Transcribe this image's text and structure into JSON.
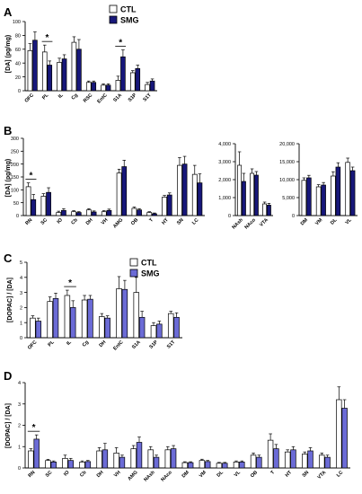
{
  "legend": {
    "ctl": "CTL",
    "smg": "SMG"
  },
  "colors": {
    "ctl": "#ffffff",
    "smg_dark": "#17177a",
    "smg_light": "#6b6bd6",
    "stroke": "#000000"
  },
  "chart_data": [
    {
      "panel": "A",
      "type": "bar",
      "ylabel": "[DA] (pg/mg)",
      "ylim": [
        0,
        100
      ],
      "yticks": [
        "0",
        "20",
        "40",
        "60",
        "80",
        "100"
      ],
      "categories": [
        "OFC",
        "PL",
        "IL",
        "Cg",
        "RSC",
        "EntC",
        "S1A",
        "S1P",
        "S1T"
      ],
      "series": [
        {
          "name": "CTL",
          "values": [
            58,
            56,
            41,
            70,
            12,
            8,
            15,
            26,
            9
          ],
          "errors": [
            10,
            10,
            6,
            8,
            2,
            2,
            6,
            3,
            3
          ]
        },
        {
          "name": "SMG",
          "values": [
            73,
            37,
            46,
            60,
            12,
            8,
            49,
            32,
            14
          ],
          "errors": [
            12,
            6,
            6,
            14,
            2,
            2,
            10,
            5,
            3
          ]
        }
      ],
      "significance": [
        {
          "category": "PL",
          "label": "*"
        },
        {
          "category": "S1A",
          "label": "*"
        }
      ]
    },
    {
      "panel": "B",
      "type": "bar",
      "ylabel": "[DA] (pg/mg)",
      "ylim": [
        0,
        300
      ],
      "yticks": [
        "0",
        "50",
        "100",
        "150",
        "200",
        "250",
        "300"
      ],
      "categories": [
        "RN",
        "SC",
        "IO",
        "Cb",
        "DH",
        "VH",
        "AMG",
        "OB",
        "T",
        "HT",
        "SN",
        "LC"
      ],
      "series": [
        {
          "name": "CTL",
          "values": [
            112,
            75,
            12,
            15,
            22,
            15,
            165,
            28,
            12,
            72,
            195,
            160
          ],
          "errors": [
            15,
            10,
            5,
            4,
            5,
            4,
            15,
            5,
            3,
            6,
            30,
            35
          ]
        },
        {
          "name": "SMG",
          "values": [
            62,
            90,
            20,
            12,
            14,
            20,
            190,
            22,
            7,
            80,
            200,
            127
          ],
          "errors": [
            20,
            18,
            7,
            3,
            4,
            5,
            25,
            5,
            3,
            8,
            30,
            35
          ]
        }
      ],
      "significance": [
        {
          "category": "RN",
          "label": "*"
        }
      ]
    },
    {
      "panel": "B",
      "type": "bar",
      "ylabel": "",
      "ylim": [
        0,
        4000
      ],
      "yticks": [
        "0",
        "1,000",
        "2,000",
        "3,000",
        "4,000"
      ],
      "categories": [
        "NAsh",
        "NAco",
        "VTA"
      ],
      "series": [
        {
          "name": "CTL",
          "values": [
            2800,
            2350,
            650
          ],
          "errors": [
            750,
            250,
            100
          ]
        },
        {
          "name": "SMG",
          "values": [
            1900,
            2250,
            580
          ],
          "errors": [
            450,
            200,
            100
          ]
        }
      ]
    },
    {
      "panel": "B",
      "type": "bar",
      "ylabel": "",
      "ylim": [
        0,
        20000
      ],
      "yticks": [
        "0",
        "5,000",
        "10,000",
        "15,000",
        "20,000"
      ],
      "categories": [
        "DM",
        "VM",
        "DL",
        "VL"
      ],
      "series": [
        {
          "name": "CTL",
          "values": [
            9800,
            8000,
            11000,
            14800
          ],
          "errors": [
            700,
            600,
            1200,
            1200
          ]
        },
        {
          "name": "SMG",
          "values": [
            10500,
            8500,
            13500,
            12500
          ],
          "errors": [
            700,
            700,
            1200,
            1000
          ]
        }
      ]
    },
    {
      "panel": "C",
      "type": "bar",
      "ylabel": "[DOPAC] / [DA]",
      "ylim": [
        0,
        5
      ],
      "yticks": [
        "0",
        "1",
        "2",
        "3",
        "4",
        "5"
      ],
      "categories": [
        "OFC",
        "PL",
        "IL",
        "Cg",
        "DH",
        "EntC",
        "S1A",
        "S1P",
        "S1T"
      ],
      "series": [
        {
          "name": "CTL",
          "values": [
            1.3,
            2.4,
            2.8,
            2.5,
            1.4,
            3.25,
            3.0,
            0.8,
            1.6
          ],
          "errors": [
            0.15,
            0.3,
            0.35,
            0.3,
            0.2,
            0.8,
            1.0,
            0.2,
            0.15
          ]
        },
        {
          "name": "SMG",
          "values": [
            1.1,
            2.6,
            2.0,
            2.55,
            1.3,
            3.2,
            1.35,
            0.9,
            1.35
          ],
          "errors": [
            0.2,
            0.35,
            0.45,
            0.25,
            0.15,
            0.6,
            0.4,
            0.2,
            0.3
          ]
        }
      ],
      "significance": [
        {
          "category": "IL",
          "label": "*"
        }
      ]
    },
    {
      "panel": "D",
      "type": "bar",
      "ylabel": "[DOPAC] / [DA]",
      "ylim": [
        0,
        4
      ],
      "yticks": [
        "0",
        "1",
        "2",
        "3",
        "4"
      ],
      "categories": [
        "RN",
        "SC",
        "IO",
        "Cb",
        "DH",
        "VH",
        "AMG",
        "NAsh",
        "NAco",
        "DM",
        "VM",
        "DL",
        "VL",
        "OB",
        "T",
        "HT",
        "SN",
        "VTA",
        "LC"
      ],
      "series": [
        {
          "name": "CTL",
          "values": [
            0.8,
            0.35,
            0.45,
            0.28,
            0.8,
            0.7,
            0.9,
            0.85,
            0.85,
            0.25,
            0.35,
            0.22,
            0.28,
            0.6,
            1.3,
            0.75,
            0.65,
            0.6,
            3.2
          ],
          "errors": [
            0.1,
            0.05,
            0.15,
            0.05,
            0.15,
            0.25,
            0.15,
            0.15,
            0.15,
            0.04,
            0.06,
            0.04,
            0.05,
            0.1,
            0.3,
            0.1,
            0.1,
            0.1,
            0.6
          ]
        },
        {
          "name": "SMG",
          "values": [
            1.35,
            0.28,
            0.35,
            0.3,
            0.85,
            0.5,
            1.2,
            0.5,
            0.9,
            0.25,
            0.3,
            0.22,
            0.28,
            0.5,
            0.9,
            0.85,
            0.8,
            0.5,
            2.8
          ],
          "errors": [
            0.2,
            0.05,
            0.1,
            0.05,
            0.3,
            0.1,
            0.25,
            0.1,
            0.15,
            0.04,
            0.05,
            0.04,
            0.05,
            0.1,
            0.2,
            0.15,
            0.15,
            0.1,
            0.4
          ]
        }
      ],
      "significance": [
        {
          "category": "RN",
          "label": "*"
        }
      ]
    }
  ]
}
